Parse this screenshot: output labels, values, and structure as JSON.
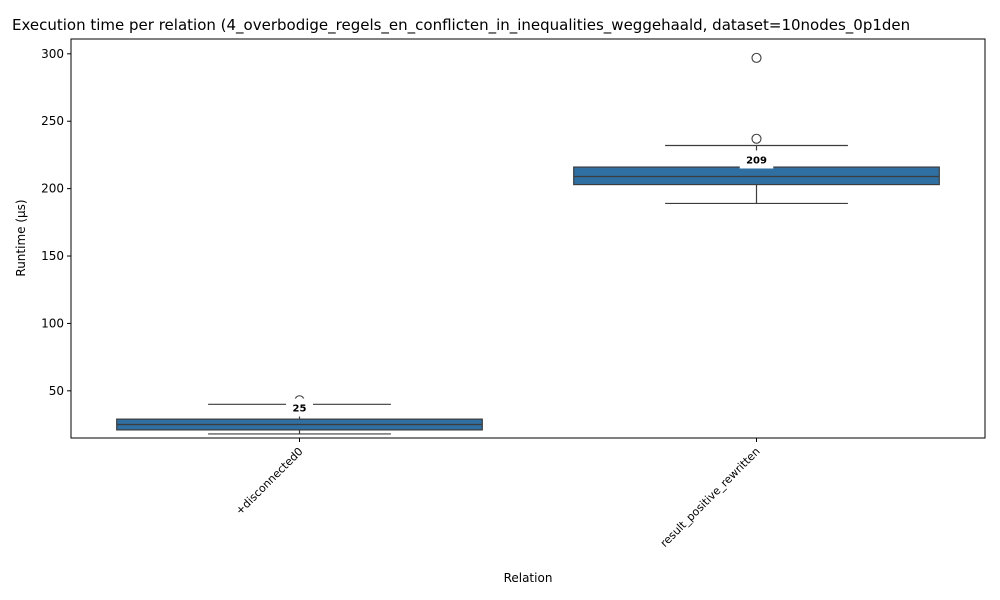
{
  "chart_data": {
    "type": "box",
    "title": "Execution time per relation (4_overbodige_regels_en_conflicten_in_inequalities_weggehaald, dataset=10nodes_0p1den",
    "xlabel": "Relation",
    "ylabel": "Runtime (µs)",
    "ylim": [
      15,
      311
    ],
    "yticks": [
      50,
      100,
      150,
      200,
      250,
      300
    ],
    "grid": false,
    "legend": "none",
    "box_color": "#2f6fa2",
    "categories": [
      "+disconnected0",
      "result_positive_rewritten"
    ],
    "boxes": [
      {
        "category": "+disconnected0",
        "whisker_low": 18,
        "q1": 21,
        "median": 25,
        "q3": 29,
        "whisker_high": 40,
        "outliers": [
          43
        ],
        "median_label": "25"
      },
      {
        "category": "result_positive_rewritten",
        "whisker_low": 189,
        "q1": 203,
        "median": 209,
        "q3": 216,
        "whisker_high": 232,
        "outliers": [
          237,
          297
        ],
        "median_label": "209"
      }
    ]
  }
}
